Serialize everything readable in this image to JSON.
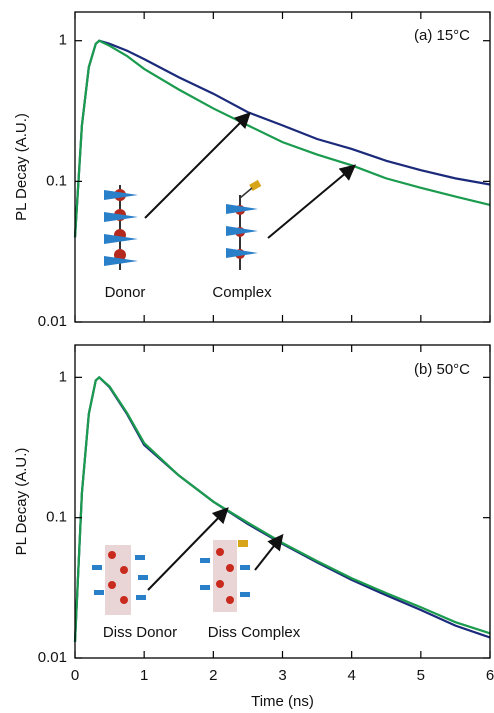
{
  "chart_data": [
    {
      "type": "line",
      "log_y": true,
      "show_xtick_labels": false,
      "ylabel": "PL Decay (A.U.)",
      "annotations": [
        "(a) 15°C",
        "Donor",
        "Complex"
      ],
      "x": [
        0,
        0.1,
        0.2,
        0.3,
        0.35,
        0.5,
        0.75,
        1,
        1.5,
        2,
        2.5,
        3,
        3.5,
        4,
        4.5,
        5,
        5.5,
        6
      ],
      "series": [
        {
          "color": "#1b2a7a",
          "values": [
            0.04,
            0.25,
            0.65,
            0.95,
            1.0,
            0.95,
            0.85,
            0.74,
            0.55,
            0.42,
            0.31,
            0.25,
            0.2,
            0.17,
            0.14,
            0.12,
            0.105,
            0.095
          ]
        },
        {
          "color": "#1a9b4e",
          "values": [
            0.04,
            0.25,
            0.65,
            0.95,
            1.0,
            0.92,
            0.78,
            0.63,
            0.45,
            0.33,
            0.25,
            0.19,
            0.155,
            0.13,
            0.105,
            0.09,
            0.078,
            0.068
          ]
        }
      ],
      "xlim": [
        0,
        6
      ],
      "xticks": [
        0,
        1,
        2,
        3,
        4,
        5,
        6
      ],
      "ylim": [
        0.01,
        1.6
      ],
      "yticks": [
        0.01,
        0.1,
        1
      ]
    },
    {
      "type": "line",
      "log_y": true,
      "show_xtick_labels": true,
      "xlabel": "Time (ns)",
      "ylabel": "PL Decay (A.U.)",
      "annotations": [
        "(b) 50°C",
        "Diss Donor",
        "Diss Complex"
      ],
      "x": [
        0,
        0.1,
        0.2,
        0.3,
        0.35,
        0.5,
        0.75,
        1,
        1.5,
        2,
        2.5,
        3,
        3.5,
        4,
        4.5,
        5,
        5.5,
        6
      ],
      "series": [
        {
          "color": "#1b2a7a",
          "values": [
            0.013,
            0.15,
            0.55,
            0.95,
            1.0,
            0.85,
            0.55,
            0.33,
            0.2,
            0.13,
            0.09,
            0.065,
            0.048,
            0.036,
            0.028,
            0.022,
            0.017,
            0.014
          ]
        },
        {
          "color": "#1a9b4e",
          "values": [
            0.013,
            0.15,
            0.55,
            0.95,
            1.0,
            0.86,
            0.56,
            0.34,
            0.2,
            0.13,
            0.092,
            0.066,
            0.049,
            0.037,
            0.029,
            0.023,
            0.018,
            0.015
          ]
        }
      ],
      "xlim": [
        0,
        6
      ],
      "xticks": [
        0,
        1,
        2,
        3,
        4,
        5,
        6
      ],
      "ylim": [
        0.01,
        1.7
      ],
      "yticks": [
        0.01,
        0.1,
        1
      ]
    }
  ]
}
